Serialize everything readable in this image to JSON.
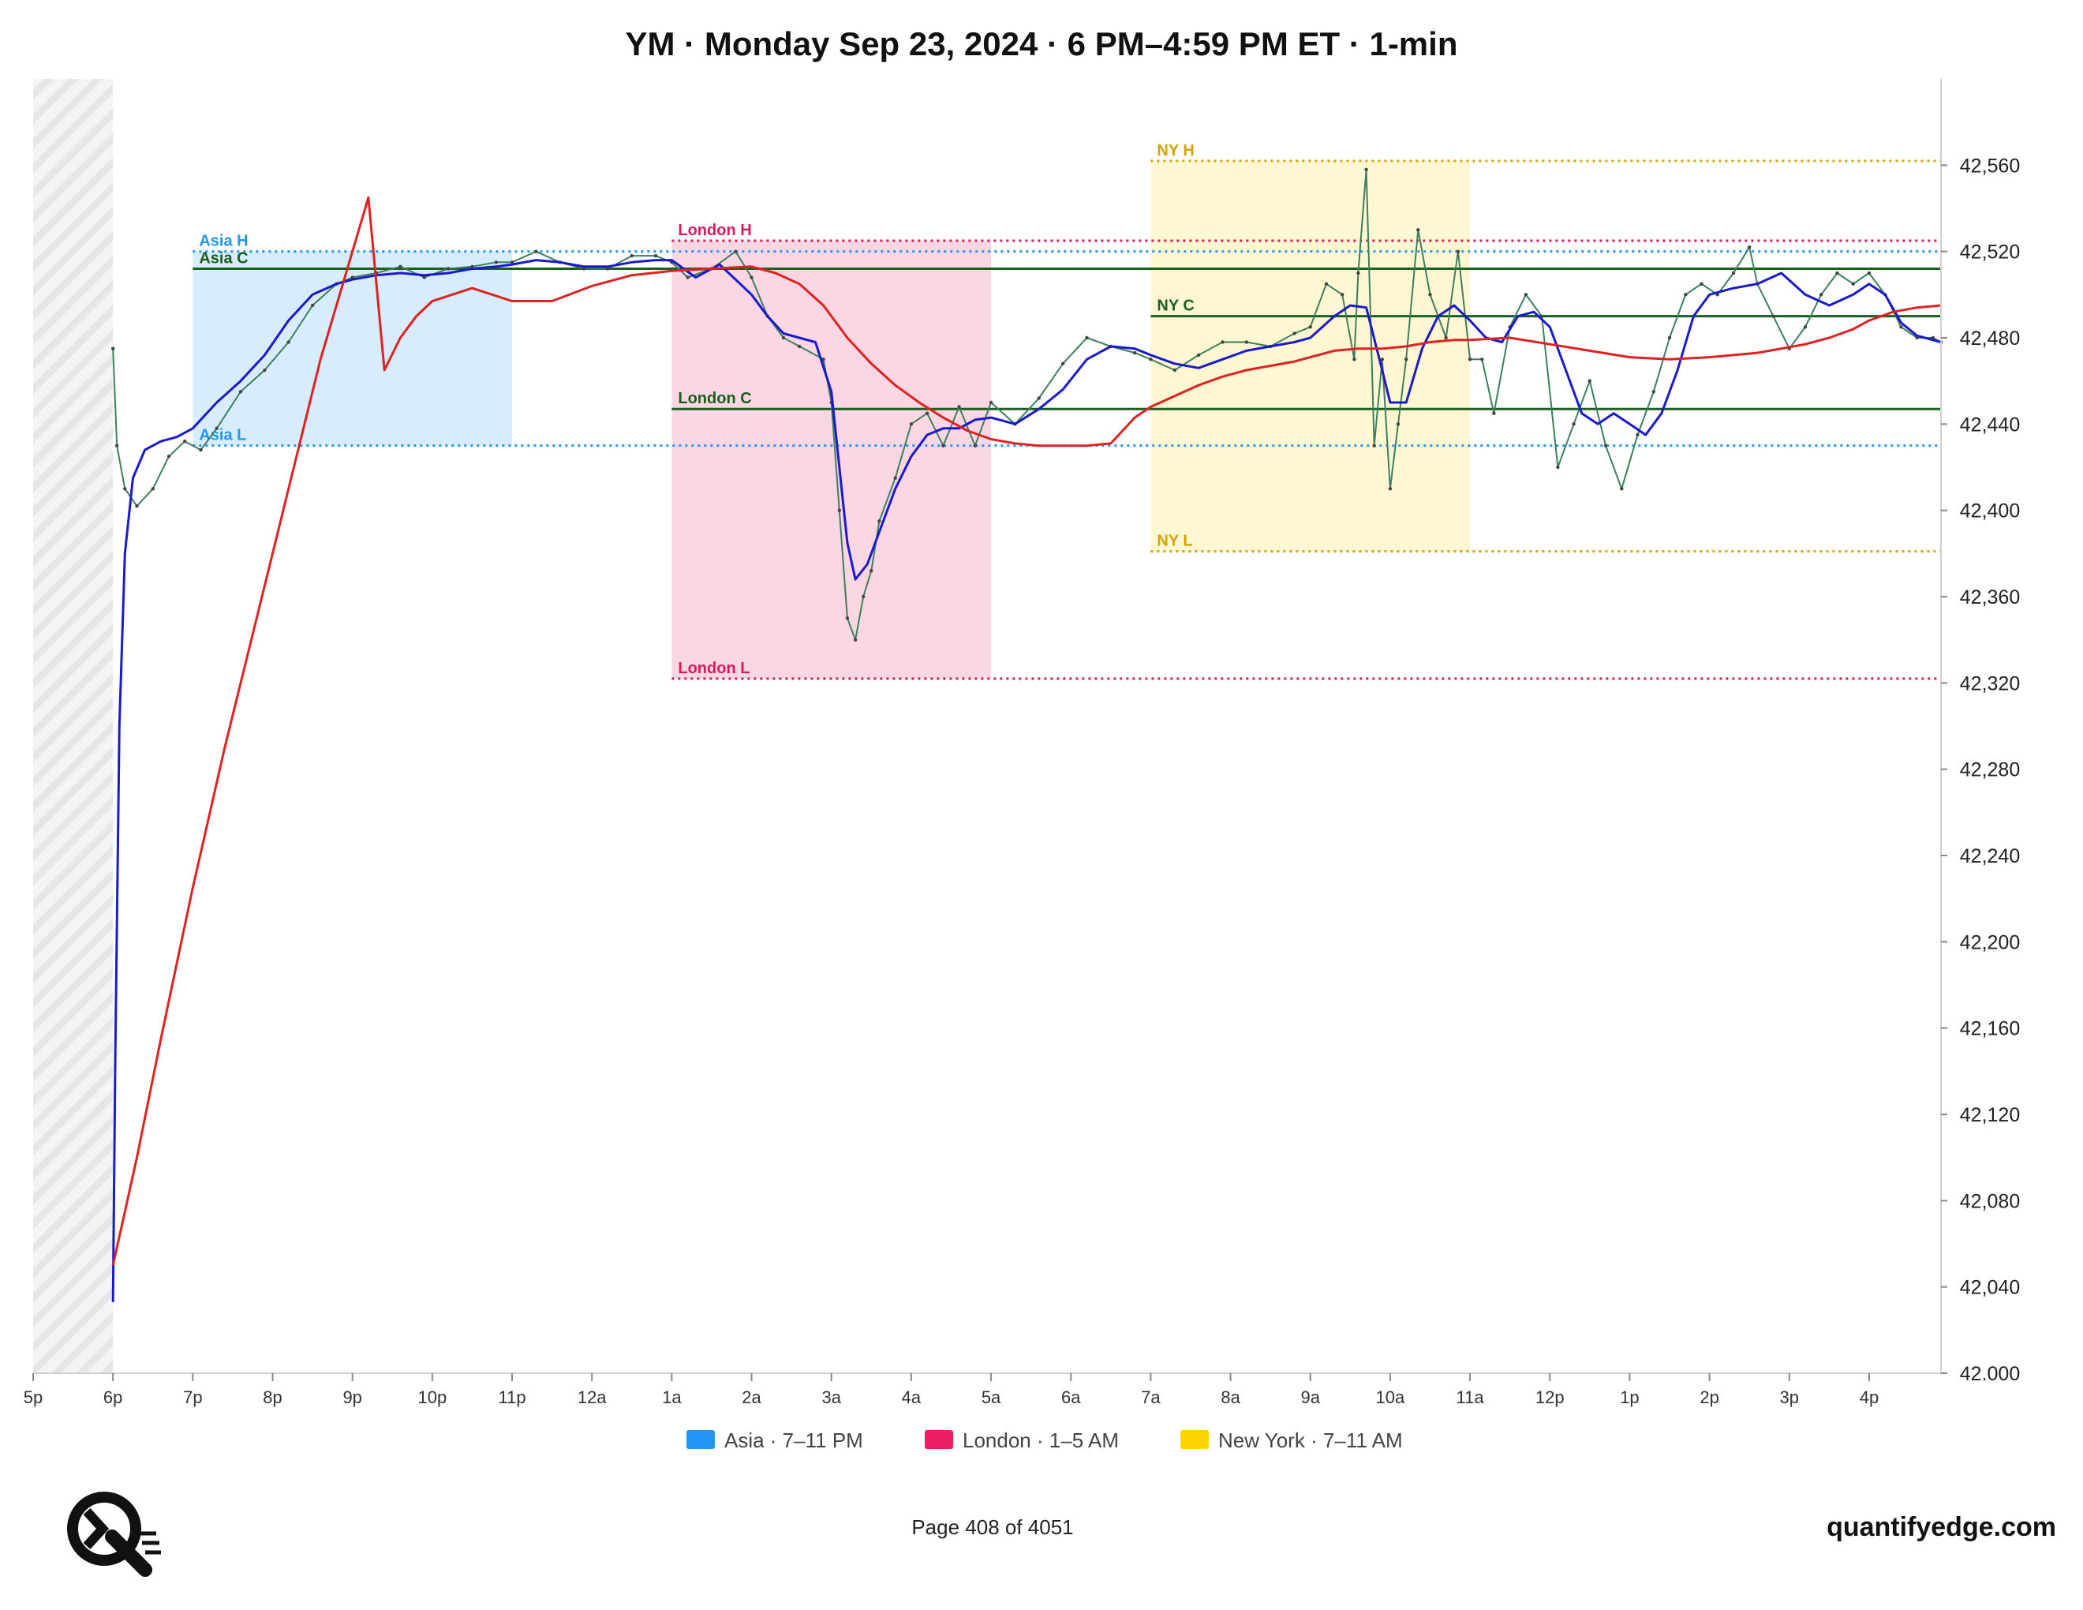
{
  "chart_data": {
    "type": "line",
    "title": "YM · Monday Sep 23, 2024 · 6 PM–4:59 PM ET · 1-min",
    "ylim": [
      42000,
      42600
    ],
    "y_ticks": [
      42000,
      42040,
      42080,
      42120,
      42160,
      42200,
      42240,
      42280,
      42320,
      42360,
      42400,
      42440,
      42480,
      42520,
      42560
    ],
    "y_tick_labels": [
      "42.000",
      "42,040",
      "42,080",
      "42,120",
      "42,160",
      "42,200",
      "42,240",
      "42,280",
      "42,320",
      "42,360",
      "42,400",
      "42,440",
      "42,480",
      "42,520",
      "42,560"
    ],
    "x_unit": "hours since 5 PM ET",
    "xlim": [
      0,
      23.9
    ],
    "x_ticks": [
      {
        "x": 0,
        "label": "5p"
      },
      {
        "x": 1,
        "label": "6p"
      },
      {
        "x": 2,
        "label": "7p"
      },
      {
        "x": 3,
        "label": "8p"
      },
      {
        "x": 4,
        "label": "9p"
      },
      {
        "x": 5,
        "label": "10p"
      },
      {
        "x": 6,
        "label": "11p"
      },
      {
        "x": 7,
        "label": "12a"
      },
      {
        "x": 8,
        "label": "1a"
      },
      {
        "x": 9,
        "label": "2a"
      },
      {
        "x": 10,
        "label": "3a"
      },
      {
        "x": 11,
        "label": "4a"
      },
      {
        "x": 12,
        "label": "5a"
      },
      {
        "x": 13,
        "label": "6a"
      },
      {
        "x": 14,
        "label": "7a"
      },
      {
        "x": 15,
        "label": "8a"
      },
      {
        "x": 16,
        "label": "9a"
      },
      {
        "x": 17,
        "label": "10a"
      },
      {
        "x": 18,
        "label": "11a"
      },
      {
        "x": 19,
        "label": "12p"
      },
      {
        "x": 20,
        "label": "1p"
      },
      {
        "x": 21,
        "label": "2p"
      },
      {
        "x": 22,
        "label": "3p"
      },
      {
        "x": 23,
        "label": "4p"
      }
    ],
    "closed_period": {
      "x0": 0,
      "x1": 1
    },
    "sessions": [
      {
        "name": "Asia",
        "x0": 2,
        "x1": 6,
        "low": 42430,
        "high": 42520,
        "color": "#2196f3"
      },
      {
        "name": "London",
        "x0": 8,
        "x1": 12,
        "low": 42322,
        "high": 42525,
        "color": "#e91e63"
      },
      {
        "name": "New York",
        "x0": 14,
        "x1": 18,
        "low": 42381,
        "high": 42562,
        "color": "#ffd400"
      }
    ],
    "levels": [
      {
        "label": "Asia H",
        "value": 42520,
        "x0": 2,
        "style": "dotted",
        "color": "#2196f3"
      },
      {
        "label": "Asia C",
        "value": 42512,
        "x0": 2,
        "style": "solid",
        "color": "#1b5e20"
      },
      {
        "label": "Asia L",
        "value": 42430,
        "x0": 2,
        "style": "dotted",
        "color": "#2196f3"
      },
      {
        "label": "London H",
        "value": 42525,
        "x0": 8,
        "style": "dotted",
        "color": "#d81b60"
      },
      {
        "label": "London C",
        "value": 42447,
        "x0": 8,
        "style": "solid",
        "color": "#1b5e20"
      },
      {
        "label": "London L",
        "value": 42322,
        "x0": 8,
        "style": "dotted",
        "color": "#d81b60"
      },
      {
        "label": "NY H",
        "value": 42562,
        "x0": 14,
        "style": "dotted",
        "color": "#d4a300"
      },
      {
        "label": "NY C",
        "value": 42490,
        "x0": 14,
        "style": "solid",
        "color": "#1b5e20"
      },
      {
        "label": "NY L",
        "value": 42381,
        "x0": 14,
        "style": "dotted",
        "color": "#d4a300"
      }
    ],
    "series": [
      {
        "role": "price",
        "color": "#3d7f5c",
        "x": [
          1.0,
          1.05,
          1.15,
          1.3,
          1.5,
          1.7,
          1.9,
          2.1,
          2.3,
          2.6,
          2.9,
          3.2,
          3.5,
          3.8,
          4.0,
          4.3,
          4.6,
          4.9,
          5.2,
          5.5,
          5.8,
          6.0,
          6.3,
          6.6,
          6.9,
          7.2,
          7.5,
          7.8,
          8.0,
          8.2,
          8.5,
          8.8,
          9.0,
          9.2,
          9.4,
          9.6,
          9.9,
          10.0,
          10.1,
          10.2,
          10.3,
          10.4,
          10.5,
          10.6,
          10.8,
          11.0,
          11.2,
          11.4,
          11.6,
          11.8,
          12.0,
          12.3,
          12.6,
          12.9,
          13.2,
          13.5,
          13.8,
          14.0,
          14.3,
          14.6,
          14.9,
          15.2,
          15.5,
          15.8,
          16.0,
          16.2,
          16.4,
          16.55,
          16.6,
          16.7,
          16.8,
          16.9,
          17.0,
          17.1,
          17.2,
          17.35,
          17.5,
          17.7,
          17.85,
          18.0,
          18.15,
          18.3,
          18.5,
          18.7,
          18.9,
          19.1,
          19.3,
          19.5,
          19.7,
          19.9,
          20.1,
          20.3,
          20.5,
          20.7,
          20.9,
          21.1,
          21.3,
          21.5,
          21.6,
          21.8,
          22.0,
          22.2,
          22.4,
          22.6,
          22.8,
          23.0,
          23.2,
          23.4,
          23.6,
          23.8,
          23.9
        ],
        "values": [
          42475,
          42430,
          42410,
          42402,
          42410,
          42425,
          42432,
          42428,
          42438,
          42455,
          42465,
          42478,
          42495,
          42505,
          42508,
          42510,
          42513,
          42508,
          42512,
          42513,
          42515,
          42515,
          42520,
          42515,
          42512,
          42512,
          42518,
          42518,
          42515,
          42508,
          42512,
          42520,
          42508,
          42490,
          42480,
          42476,
          42470,
          42450,
          42400,
          42350,
          42340,
          42360,
          42372,
          42395,
          42415,
          42440,
          42445,
          42430,
          42448,
          42430,
          42450,
          42440,
          42452,
          42468,
          42480,
          42476,
          42473,
          42470,
          42465,
          42472,
          42478,
          42478,
          42476,
          42482,
          42485,
          42505,
          42500,
          42470,
          42510,
          42558,
          42430,
          42470,
          42410,
          42440,
          42470,
          42530,
          42500,
          42480,
          42520,
          42470,
          42470,
          42445,
          42485,
          42500,
          42490,
          42420,
          42440,
          42460,
          42430,
          42410,
          42435,
          42455,
          42480,
          42500,
          42505,
          42500,
          42510,
          42522,
          42505,
          42490,
          42475,
          42485,
          42500,
          42510,
          42505,
          42510,
          42500,
          42485,
          42480,
          42480,
          42478
        ]
      },
      {
        "role": "fast-ma",
        "color": "#1a1acc",
        "x": [
          1.0,
          1.03,
          1.08,
          1.15,
          1.25,
          1.4,
          1.6,
          1.8,
          2.0,
          2.3,
          2.6,
          2.9,
          3.2,
          3.5,
          3.8,
          4.0,
          4.3,
          4.6,
          4.9,
          5.2,
          5.5,
          5.8,
          6.0,
          6.3,
          6.6,
          6.9,
          7.2,
          7.5,
          7.8,
          8.0,
          8.3,
          8.6,
          9.0,
          9.2,
          9.4,
          9.6,
          9.8,
          10.0,
          10.1,
          10.2,
          10.3,
          10.45,
          10.6,
          10.8,
          11.0,
          11.2,
          11.4,
          11.6,
          11.8,
          12.0,
          12.3,
          12.6,
          12.9,
          13.2,
          13.5,
          13.8,
          14.0,
          14.3,
          14.6,
          14.9,
          15.2,
          15.5,
          15.8,
          16.0,
          16.3,
          16.5,
          16.7,
          16.9,
          17.0,
          17.2,
          17.4,
          17.6,
          17.8,
          18.0,
          18.2,
          18.4,
          18.6,
          18.8,
          19.0,
          19.2,
          19.4,
          19.6,
          19.8,
          20.0,
          20.2,
          20.4,
          20.6,
          20.8,
          21.0,
          21.3,
          21.6,
          21.9,
          22.2,
          22.5,
          22.8,
          23.0,
          23.2,
          23.4,
          23.6,
          23.9
        ],
        "values": [
          42033,
          42150,
          42300,
          42380,
          42415,
          42428,
          42432,
          42434,
          42438,
          42450,
          42460,
          42472,
          42488,
          42500,
          42505,
          42507,
          42509,
          42510,
          42509,
          42510,
          42512,
          42513,
          42514,
          42516,
          42515,
          42513,
          42513,
          42515,
          42516,
          42516,
          42508,
          42514,
          42500,
          42490,
          42482,
          42480,
          42478,
          42455,
          42420,
          42385,
          42368,
          42375,
          42390,
          42410,
          42425,
          42435,
          42438,
          42438,
          42442,
          42443,
          42440,
          42447,
          42456,
          42470,
          42476,
          42475,
          42472,
          42468,
          42466,
          42470,
          42474,
          42476,
          42478,
          42480,
          42490,
          42495,
          42494,
          42465,
          42450,
          42450,
          42475,
          42490,
          42495,
          42488,
          42480,
          42478,
          42490,
          42492,
          42485,
          42465,
          42445,
          42440,
          42445,
          42440,
          42435,
          42445,
          42465,
          42490,
          42500,
          42503,
          42505,
          42510,
          42500,
          42495,
          42500,
          42505,
          42500,
          42487,
          42481,
          42478
        ]
      },
      {
        "role": "slow-ma",
        "color": "#dd2222",
        "x": [
          1.0,
          1.3,
          1.6,
          2.0,
          2.4,
          2.8,
          3.2,
          3.6,
          4.0,
          4.2,
          4.4,
          4.6,
          4.8,
          5.0,
          5.5,
          6.0,
          6.5,
          7.0,
          7.5,
          8.0,
          8.5,
          9.0,
          9.3,
          9.6,
          9.9,
          10.2,
          10.5,
          10.8,
          11.1,
          11.4,
          11.7,
          12.0,
          12.3,
          12.6,
          12.9,
          13.2,
          13.5,
          13.8,
          14.0,
          14.3,
          14.6,
          14.9,
          15.2,
          15.5,
          15.8,
          16.0,
          16.3,
          16.6,
          16.9,
          17.2,
          17.5,
          17.8,
          18.0,
          18.5,
          19.0,
          19.5,
          20.0,
          20.5,
          21.0,
          21.3,
          21.6,
          21.9,
          22.2,
          22.5,
          22.8,
          23.0,
          23.3,
          23.6,
          23.9
        ],
        "values": [
          42050,
          42100,
          42155,
          42225,
          42290,
          42350,
          42410,
          42470,
          42520,
          42545,
          42465,
          42480,
          42490,
          42497,
          42503,
          42497,
          42497,
          42504,
          42509,
          42511,
          42512,
          42513,
          42510,
          42505,
          42495,
          42480,
          42468,
          42458,
          42450,
          42443,
          42437,
          42433,
          42431,
          42430,
          42430,
          42430,
          42431,
          42443,
          42448,
          42453,
          42458,
          42462,
          42465,
          42467,
          42469,
          42471,
          42474,
          42475,
          42475,
          42476,
          42478,
          42479,
          42479,
          42480,
          42477,
          42474,
          42471,
          42470,
          42471,
          42472,
          42473,
          42475,
          42477,
          42480,
          42484,
          42488,
          42492,
          42494,
          42495
        ]
      }
    ],
    "legend": [
      {
        "label": "Asia · 7–11 PM",
        "color": "#2196f3"
      },
      {
        "label": "London · 1–5 AM",
        "color": "#e91e63"
      },
      {
        "label": "New York · 7–11 AM",
        "color": "#ffd400"
      }
    ]
  },
  "footer": {
    "page_text": "Page 408 of 4051",
    "site": "quantifyedge.com",
    "logo_icon": "quantifyedge-logo-icon"
  }
}
